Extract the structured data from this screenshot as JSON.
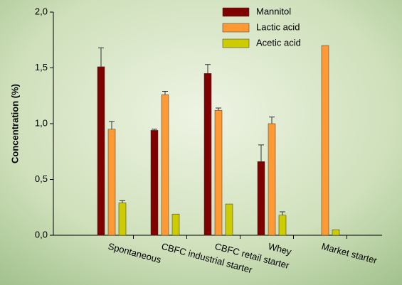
{
  "chart_data": {
    "type": "bar",
    "y_label": "Concentration (%)",
    "categories": [
      "Spontaneous",
      "CBFC industrial starter",
      "CBFC retail starter",
      "Whey",
      "Market starter"
    ],
    "series": [
      {
        "name": "Mannitol",
        "color": "#800000",
        "values": [
          1.51,
          0.94,
          1.45,
          0.66,
          null
        ],
        "errors": [
          0.17,
          0.01,
          0.08,
          0.15,
          null
        ]
      },
      {
        "name": "Lactic acid",
        "color": "#ff9933",
        "values": [
          0.95,
          1.26,
          1.12,
          1.0,
          1.7
        ],
        "errors": [
          0.07,
          0.03,
          0.02,
          0.06,
          null
        ]
      },
      {
        "name": "Acetic acid",
        "color": "#cccc00",
        "values": [
          0.29,
          0.19,
          0.28,
          0.18,
          0.05
        ],
        "errors": [
          0.02,
          null,
          null,
          0.03,
          null
        ]
      }
    ],
    "ylim": [
      0,
      2
    ],
    "yticks": [
      {
        "value": 0,
        "label": "0,0"
      },
      {
        "value": 0.5,
        "label": "0,5"
      },
      {
        "value": 1,
        "label": "1,0"
      },
      {
        "value": 1.5,
        "label": "1,5"
      },
      {
        "value": 2,
        "label": "2,0"
      }
    ],
    "legend": "top-right"
  }
}
